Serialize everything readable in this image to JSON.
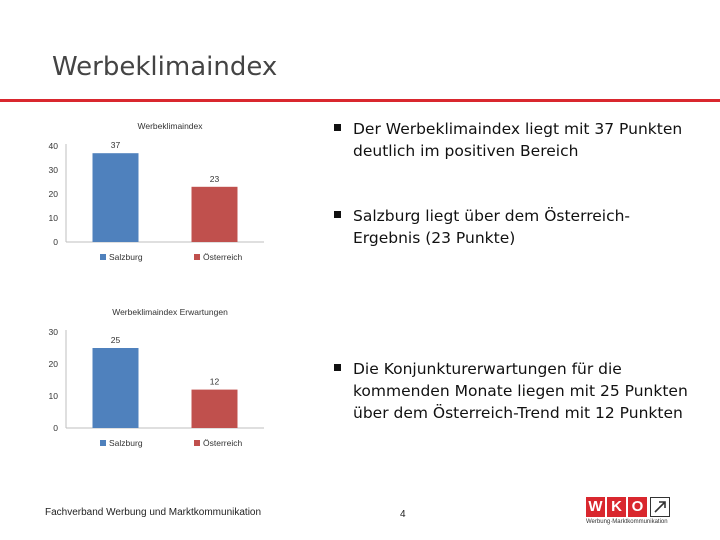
{
  "slide": {
    "title": "Werbeklimaindex",
    "accent_color": "#d9272e"
  },
  "bullets": [
    "Der Werbeklimaindex liegt mit 37 Punkten deutlich im positiven Bereich",
    "Salzburg liegt über dem Österreich-Ergebnis (23 Punkte)",
    "Die Konjunkturerwartungen für die kommenden Monate liegen mit 25 Punkten über dem Österreich-Trend mit 12 Punkten"
  ],
  "footer": {
    "text": "Fachverband Werbung und Marktkommunikation",
    "page": "4",
    "logo_letters": [
      "W",
      "K",
      "O"
    ],
    "logo_tagline": "Werbung·Marktkommunikation"
  },
  "chart_data": [
    {
      "type": "bar",
      "title": "Werbeklimaindex",
      "categories": [
        "Salzburg",
        "Österreich"
      ],
      "values": [
        37,
        23
      ],
      "ylim": [
        0,
        40
      ],
      "yticks": [
        0,
        10,
        20,
        30,
        40
      ],
      "colors": [
        "#4f81bd",
        "#c0504d"
      ],
      "legend": [
        "Salzburg",
        "Österreich"
      ],
      "legend_position": "bottom",
      "grid": false
    },
    {
      "type": "bar",
      "title": "Werbeklimaindex Erwartungen",
      "categories": [
        "Salzburg",
        "Österreich"
      ],
      "values": [
        25,
        12
      ],
      "ylim": [
        0,
        30
      ],
      "yticks": [
        0,
        10,
        20,
        30
      ],
      "colors": [
        "#4f81bd",
        "#c0504d"
      ],
      "legend": [
        "Salzburg",
        "Österreich"
      ],
      "legend_position": "bottom",
      "grid": false
    }
  ]
}
